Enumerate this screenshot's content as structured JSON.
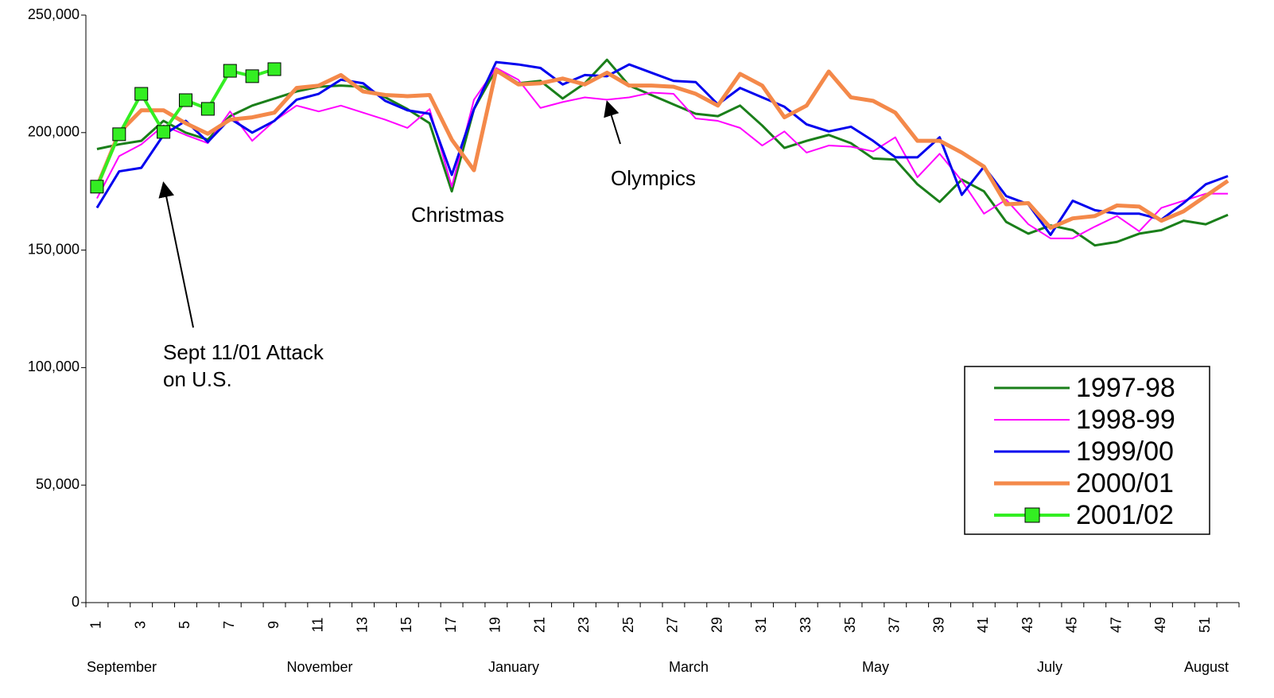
{
  "chart_data": {
    "type": "line",
    "categories": [
      "1",
      null,
      "3",
      null,
      "5",
      null,
      "7",
      null,
      "9",
      null,
      "11",
      null,
      "13",
      null,
      "15",
      null,
      "17",
      null,
      "19",
      null,
      "21",
      null,
      "23",
      null,
      "25",
      null,
      "27",
      null,
      "29",
      null,
      "31",
      null,
      "33",
      null,
      "35",
      null,
      "37",
      null,
      "39",
      null,
      "41",
      null,
      "43",
      null,
      "45",
      null,
      "47",
      null,
      "49",
      null,
      "51",
      null
    ],
    "month_labels": [
      "September",
      "November",
      "January",
      "March",
      "May",
      "July",
      "August"
    ],
    "annotations": [
      [
        "Sept 11/01 Attack",
        "on U.S."
      ],
      "Christmas",
      "Olympics"
    ],
    "ylim": [
      0,
      250000
    ],
    "yticks": [
      0,
      {
        "value": 50000,
        "label": "50,000"
      },
      {
        "value": 100000,
        "label": "100,000"
      },
      {
        "value": 150000,
        "label": "150,000"
      },
      {
        "value": 200000,
        "label": "200,000"
      },
      {
        "value": 250000,
        "label": "250,000"
      }
    ],
    "legend_position": "lower right",
    "series": [
      {
        "name": "1997-98",
        "color": "#1a7f1a",
        "line_width": 3,
        "values": [
          193000,
          195000,
          196500,
          205000,
          200000,
          197000,
          207000,
          211500,
          214500,
          217500,
          219500,
          220000,
          219500,
          215000,
          210000,
          204000,
          175000,
          210000,
          227000,
          221000,
          222000,
          214500,
          221000,
          231000,
          220000,
          216000,
          212000,
          208000,
          207000,
          211500,
          203000,
          193500,
          196500,
          199000,
          195500,
          189000,
          188500,
          178000,
          170500,
          180000,
          175000,
          162000,
          157000,
          160500,
          158500,
          152000,
          153500,
          157000,
          158500,
          162500,
          161000,
          165000
        ]
      },
      {
        "name": "1998-99",
        "color": "#ff00ff",
        "line_width": 2,
        "values": [
          172000,
          190000,
          195000,
          203000,
          199000,
          195500,
          209000,
          196500,
          205000,
          211500,
          209000,
          211500,
          208500,
          205500,
          202000,
          210000,
          177000,
          214000,
          227500,
          222500,
          210500,
          213000,
          215000,
          214000,
          215000,
          217000,
          216500,
          206000,
          205000,
          202000,
          194500,
          200500,
          191500,
          194500,
          194000,
          192000,
          198000,
          181000,
          191000,
          179500,
          165500,
          171500,
          161000,
          155000,
          155000,
          160000,
          164500,
          158000,
          168000,
          171000,
          174000,
          174000
        ]
      },
      {
        "name": "1999/00",
        "color": "#0000ee",
        "line_width": 3,
        "values": [
          168000,
          183500,
          185000,
          199000,
          205000,
          196000,
          206000,
          200000,
          205000,
          214000,
          216500,
          222500,
          221000,
          213500,
          209500,
          208000,
          182000,
          210000,
          230000,
          229000,
          227500,
          220500,
          224500,
          224000,
          229000,
          225500,
          222000,
          221500,
          212000,
          219000,
          215000,
          211000,
          203500,
          200500,
          202500,
          196500,
          189500,
          189500,
          198000,
          173500,
          185500,
          173000,
          169500,
          156500,
          171000,
          167000,
          165500,
          165500,
          163000,
          170000,
          178000,
          181500
        ]
      },
      {
        "name": "2000/01",
        "color": "#f4894a",
        "line_width": 5,
        "values": [
          177000,
          200000,
          209500,
          209500,
          204000,
          199500,
          205500,
          206500,
          208500,
          219000,
          220000,
          224500,
          217500,
          216000,
          215500,
          216000,
          197000,
          184000,
          226500,
          220500,
          221000,
          223000,
          220500,
          225500,
          220000,
          220000,
          219500,
          216500,
          211500,
          225000,
          220000,
          206500,
          211500,
          226000,
          215000,
          213500,
          208500,
          196500,
          196500,
          191500,
          185500,
          169500,
          170000,
          159500,
          163500,
          164500,
          169000,
          168500,
          162500,
          166500,
          173000,
          179500
        ]
      },
      {
        "name": "2001/02",
        "color": "#33ee22",
        "line_width": 4,
        "marker": "square",
        "values": [
          177000,
          199300,
          216500,
          200300,
          213800,
          210100,
          226300,
          224000,
          227000,
          null,
          null,
          null,
          null,
          null,
          null,
          null,
          null,
          null,
          null,
          null,
          null,
          null,
          null,
          null,
          null,
          null,
          null,
          null,
          null,
          null,
          null,
          null,
          null,
          null,
          null,
          null,
          null,
          null,
          null,
          null,
          null,
          null,
          null,
          null,
          null,
          null,
          null,
          null,
          null,
          null,
          null,
          null
        ]
      }
    ]
  }
}
